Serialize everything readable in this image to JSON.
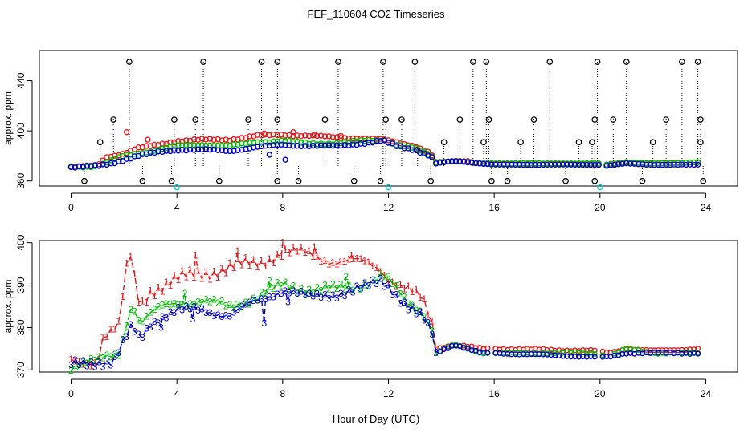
{
  "title": "FEF_110604  CO2 Timeseries",
  "xlabel": "Hour of Day (UTC)",
  "colors": {
    "red": "#e41a1c",
    "green": "#00c000",
    "blue": "#0000cc",
    "cyan": "#00cccc",
    "black": "#000000"
  },
  "chart_data": [
    {
      "type": "scatter",
      "panel": "top",
      "ylabel": "approx. ppm",
      "xlim": [
        -1.2,
        25.2
      ],
      "ylim": [
        356,
        464
      ],
      "xticks": [
        0,
        4,
        8,
        12,
        16,
        20,
        24
      ],
      "yticks": [
        360,
        400,
        440
      ],
      "markers": "circles",
      "series": [
        {
          "color": "red",
          "knots": [
            [
              0,
              371
            ],
            [
              1,
              372
            ],
            [
              1.3,
              379
            ],
            [
              2,
              382
            ],
            [
              2.5,
              386
            ],
            [
              3.3,
              389
            ],
            [
              4,
              392
            ],
            [
              5,
              393
            ],
            [
              6,
              393
            ],
            [
              7,
              396
            ],
            [
              8,
              397
            ],
            [
              9,
              396
            ],
            [
              10,
              395
            ],
            [
              11,
              394
            ],
            [
              11.8,
              393
            ],
            [
              12.3,
              391
            ],
            [
              13,
              388
            ],
            [
              13.6,
              382
            ],
            [
              13.8,
              375
            ],
            [
              14.5,
              376
            ],
            [
              15,
              376
            ],
            [
              15.5,
              374
            ],
            [
              16,
              374
            ],
            [
              20,
              374
            ],
            [
              20.2,
              373
            ],
            [
              21,
              375
            ],
            [
              22,
              374
            ],
            [
              23.7,
              375
            ]
          ],
          "spikes": [
            [
              2.1,
              399
            ],
            [
              2.9,
              393
            ],
            [
              7.3,
              398
            ],
            [
              8.4,
              399
            ],
            [
              9.2,
              397
            ],
            [
              10.2,
              396
            ]
          ]
        },
        {
          "color": "green",
          "knots": [
            [
              0,
              371
            ],
            [
              1,
              372
            ],
            [
              1.5,
              376
            ],
            [
              2,
              380
            ],
            [
              2.5,
              382
            ],
            [
              3.3,
              385
            ],
            [
              4,
              388
            ],
            [
              5,
              389
            ],
            [
              6,
              388
            ],
            [
              7,
              391
            ],
            [
              8,
              392
            ],
            [
              9,
              390
            ],
            [
              10,
              390
            ],
            [
              11,
              392
            ],
            [
              11.8,
              393
            ],
            [
              12.3,
              389
            ],
            [
              13,
              386
            ],
            [
              13.6,
              381
            ],
            [
              13.8,
              375
            ],
            [
              14.5,
              376
            ],
            [
              15.5,
              374
            ],
            [
              16,
              374
            ],
            [
              20,
              374
            ],
            [
              20.2,
              373
            ],
            [
              21,
              375
            ],
            [
              22,
              374
            ],
            [
              23.7,
              375
            ]
          ],
          "spikes": []
        },
        {
          "color": "blue",
          "knots": [
            [
              0,
              371
            ],
            [
              1,
              372
            ],
            [
              1.5,
              374
            ],
            [
              2,
              377
            ],
            [
              2.5,
              380
            ],
            [
              3.3,
              383
            ],
            [
              4,
              385
            ],
            [
              5,
              385
            ],
            [
              6,
              384
            ],
            [
              7,
              387
            ],
            [
              8,
              389
            ],
            [
              9,
              388
            ],
            [
              10,
              388
            ],
            [
              11,
              390
            ],
            [
              11.8,
              392
            ],
            [
              12.3,
              388
            ],
            [
              13,
              385
            ],
            [
              13.6,
              380
            ],
            [
              13.8,
              374
            ],
            [
              14.5,
              376
            ],
            [
              15.5,
              374
            ],
            [
              16,
              373
            ],
            [
              20,
              373
            ],
            [
              20.2,
              372
            ],
            [
              21,
              374
            ],
            [
              22,
              373
            ],
            [
              23.7,
              373
            ]
          ],
          "spikes": [
            [
              7.5,
              381
            ],
            [
              8.1,
              377
            ]
          ]
        }
      ],
      "baseline_stems": [
        [
          0.5,
          360
        ],
        [
          2.7,
          360
        ],
        [
          3.8,
          360
        ],
        [
          5.6,
          360
        ],
        [
          7.8,
          360
        ],
        [
          8.6,
          360
        ],
        [
          10.7,
          360
        ],
        [
          11.7,
          360
        ],
        [
          13.6,
          360
        ],
        [
          15.9,
          360
        ],
        [
          16.5,
          360
        ],
        [
          18.7,
          360
        ],
        [
          19.8,
          360
        ],
        [
          21.6,
          360
        ],
        [
          23.9,
          360
        ]
      ],
      "high_stems": [
        [
          1.1,
          391
        ],
        [
          1.6,
          409
        ],
        [
          2.2,
          455
        ],
        [
          3.9,
          409
        ],
        [
          4.7,
          409
        ],
        [
          5,
          455
        ],
        [
          6.7,
          409
        ],
        [
          7.2,
          455
        ],
        [
          7.8,
          455
        ],
        [
          7.8,
          409
        ],
        [
          9.6,
          409
        ],
        [
          10.1,
          455
        ],
        [
          11.8,
          455
        ],
        [
          11.9,
          409
        ],
        [
          12.5,
          409
        ],
        [
          13,
          455
        ],
        [
          14.7,
          409
        ],
        [
          15.2,
          455
        ],
        [
          15.7,
          455
        ],
        [
          15.8,
          409
        ],
        [
          17,
          391
        ],
        [
          17.5,
          409
        ],
        [
          18.1,
          455
        ],
        [
          19.2,
          391
        ],
        [
          19.8,
          409
        ],
        [
          19.9,
          455
        ],
        [
          20.5,
          409
        ],
        [
          21,
          455
        ],
        [
          22,
          391
        ],
        [
          22.5,
          409
        ],
        [
          23.1,
          455
        ],
        [
          23.7,
          455
        ],
        [
          23.8,
          409
        ]
      ],
      "low_mid_stems": [
        [
          13.1,
          385
        ],
        [
          14.1,
          391
        ],
        [
          15.6,
          391
        ],
        [
          19.7,
          391
        ],
        [
          23.8,
          391
        ]
      ],
      "cyan_points": [
        [
          4,
          355
        ],
        [
          12,
          355
        ],
        [
          20,
          355
        ]
      ]
    },
    {
      "type": "line",
      "panel": "bottom",
      "ylabel": "approx. ppm",
      "xlim": [
        -1.2,
        25.2
      ],
      "ylim": [
        369.5,
        400.5
      ],
      "xticks": [
        0,
        4,
        8,
        12,
        16,
        20,
        24
      ],
      "yticks": [
        370,
        380,
        390,
        400
      ],
      "series": [
        {
          "marker": "1",
          "color": "red",
          "knots": [
            [
              0,
              371.5
            ],
            [
              1,
              372.5
            ],
            [
              1.2,
              378
            ],
            [
              1.8,
              380
            ],
            [
              2.2,
              398
            ],
            [
              2.6,
              385
            ],
            [
              3,
              389
            ],
            [
              3.5,
              390
            ],
            [
              4,
              391
            ],
            [
              5,
              393
            ],
            [
              6,
              394
            ],
            [
              7,
              395
            ],
            [
              8,
              398
            ],
            [
              9,
              397
            ],
            [
              10,
              396
            ],
            [
              11,
              395
            ],
            [
              11.7,
              394
            ],
            [
              12,
              392
            ],
            [
              12.7,
              389
            ],
            [
              13.3,
              386
            ],
            [
              13.7,
              380
            ],
            [
              13.8,
              375
            ],
            [
              14.5,
              376
            ],
            [
              15.5,
              375
            ],
            [
              16,
              375
            ],
            [
              20,
              374.5
            ],
            [
              20.3,
              374
            ],
            [
              21,
              375
            ],
            [
              22,
              374.5
            ],
            [
              23.7,
              375
            ]
          ],
          "spikes": [
            [
              4.7,
              397
            ],
            [
              6.3,
              398
            ],
            [
              8,
              400
            ],
            [
              9.2,
              399
            ],
            [
              10.6,
              397
            ]
          ]
        },
        {
          "marker": "2",
          "color": "green",
          "knots": [
            [
              0,
              371
            ],
            [
              1,
              372
            ],
            [
              1.8,
              374
            ],
            [
              2.3,
              386
            ],
            [
              2.6,
              381
            ],
            [
              3,
              383
            ],
            [
              3.5,
              385
            ],
            [
              4,
              386
            ],
            [
              5,
              386
            ],
            [
              6,
              385
            ],
            [
              7,
              387
            ],
            [
              8,
              390
            ],
            [
              9,
              389
            ],
            [
              10,
              389
            ],
            [
              11,
              390
            ],
            [
              11.7,
              392
            ],
            [
              12,
              391
            ],
            [
              12.7,
              386
            ],
            [
              13.3,
              384
            ],
            [
              13.7,
              379
            ],
            [
              13.8,
              374
            ],
            [
              14.5,
              376
            ],
            [
              15.5,
              374
            ],
            [
              16,
              374
            ],
            [
              20,
              374
            ],
            [
              20.3,
              373
            ],
            [
              21,
              375
            ],
            [
              22,
              374
            ],
            [
              23.7,
              374
            ]
          ],
          "spikes": [
            [
              4.3,
              388
            ],
            [
              7.5,
              391
            ],
            [
              10.4,
              392
            ]
          ]
        },
        {
          "marker": "3",
          "color": "blue",
          "knots": [
            [
              0,
              371
            ],
            [
              1,
              372
            ],
            [
              1.6,
              372
            ],
            [
              2.3,
              380
            ],
            [
              2.6,
              377
            ],
            [
              3,
              381
            ],
            [
              3.5,
              383
            ],
            [
              4,
              384
            ],
            [
              5,
              384
            ],
            [
              6,
              383
            ],
            [
              7,
              386
            ],
            [
              8,
              389
            ],
            [
              9,
              387
            ],
            [
              10,
              388
            ],
            [
              11,
              389
            ],
            [
              11.7,
              391
            ],
            [
              12,
              390
            ],
            [
              12.7,
              385
            ],
            [
              13.3,
              382
            ],
            [
              13.7,
              378
            ],
            [
              13.8,
              374
            ],
            [
              14.5,
              376
            ],
            [
              15.5,
              374
            ],
            [
              16,
              374
            ],
            [
              20,
              373
            ],
            [
              20.3,
              373
            ],
            [
              21,
              374
            ],
            [
              22,
              374
            ],
            [
              23.7,
              374
            ]
          ],
          "spikes": [
            [
              3.4,
              380
            ],
            [
              4.6,
              382
            ],
            [
              7.3,
              381
            ],
            [
              8.2,
              386
            ]
          ]
        }
      ]
    }
  ]
}
